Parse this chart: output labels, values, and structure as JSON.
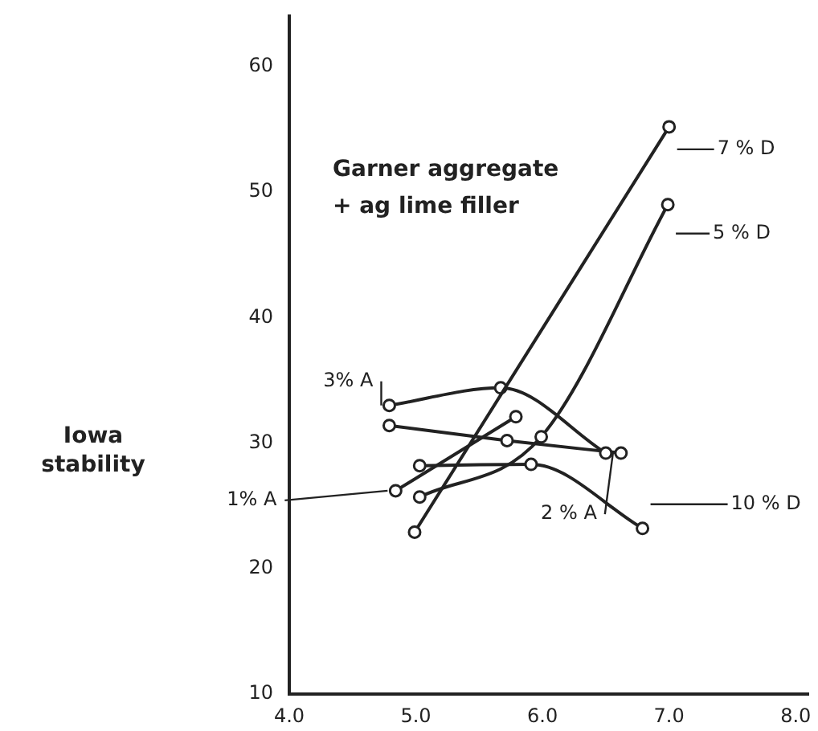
{
  "chart_data": {
    "type": "line",
    "ylabel": "Iowa stability",
    "annotations": [
      "Garner aggregate",
      "+ ag lime filler"
    ],
    "xlim": [
      4,
      8.1
    ],
    "xticks": [
      {
        "value": 4,
        "label": "4.0"
      },
      {
        "value": 5,
        "label": "5.0"
      },
      {
        "value": 6,
        "label": "6.0"
      },
      {
        "value": 7,
        "label": "7.0"
      },
      {
        "value": 8,
        "label": "8.0"
      }
    ],
    "ylim": [
      10,
      64
    ],
    "yticks": [
      10,
      20,
      30,
      40,
      50,
      60
    ],
    "grid": false,
    "legend": "right",
    "marker": "circle",
    "line_style": "solid",
    "series": [
      {
        "name": "7 % D",
        "color": "#222222",
        "x": [
          4.99,
          7.0
        ],
        "values": [
          22.9,
          55.2
        ]
      },
      {
        "name": "5 % D",
        "color": "#222222",
        "x": [
          5.03,
          5.99,
          6.99
        ],
        "values": [
          25.7,
          30.5,
          49.0
        ]
      },
      {
        "name": "3% A",
        "color": "#222222",
        "x": [
          4.79,
          5.67,
          6.5
        ],
        "values": [
          33.0,
          34.4,
          29.2
        ]
      },
      {
        "name": "2 % A",
        "color": "#222222",
        "x": [
          4.79,
          5.72,
          6.62
        ],
        "values": [
          31.4,
          30.2,
          29.2
        ]
      },
      {
        "name": "1% A",
        "color": "#222222",
        "x": [
          4.84,
          5.79
        ],
        "values": [
          26.2,
          32.1
        ]
      },
      {
        "name": "10 % D",
        "color": "#222222",
        "x": [
          5.03,
          5.91,
          6.79
        ],
        "values": [
          28.2,
          28.3,
          23.2
        ]
      }
    ]
  }
}
